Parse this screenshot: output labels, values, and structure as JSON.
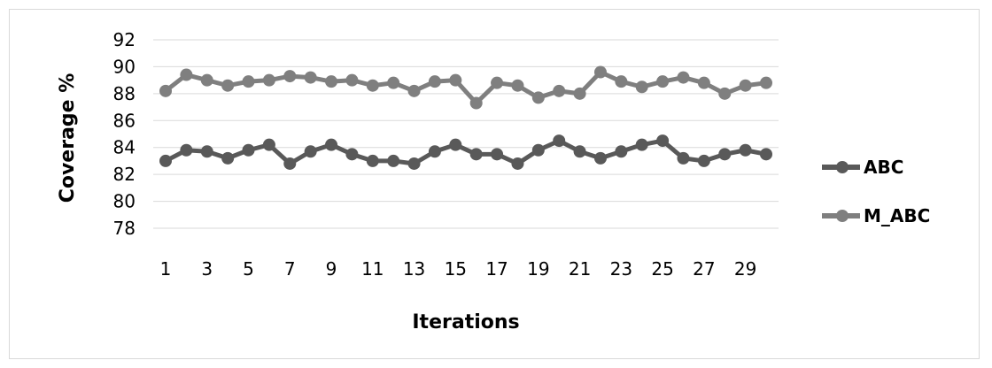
{
  "chart_data": {
    "type": "line",
    "title": "",
    "xlabel": "Iterations",
    "ylabel": "Coverage %",
    "x": [
      1,
      2,
      3,
      4,
      5,
      6,
      7,
      8,
      9,
      10,
      11,
      12,
      13,
      14,
      15,
      16,
      17,
      18,
      19,
      20,
      21,
      22,
      23,
      24,
      25,
      26,
      27,
      28,
      29,
      30
    ],
    "x_tick_labels": [
      "1",
      "3",
      "5",
      "7",
      "9",
      "11",
      "13",
      "15",
      "17",
      "19",
      "21",
      "23",
      "25",
      "27",
      "29"
    ],
    "y_tick_labels": [
      "78",
      "80",
      "82",
      "84",
      "86",
      "88",
      "90",
      "92"
    ],
    "ylim": [
      78,
      92
    ],
    "grid": true,
    "legend_position": "right",
    "series": [
      {
        "name": "ABC",
        "color": "#595959",
        "values": [
          83.0,
          83.8,
          83.7,
          83.2,
          83.8,
          84.2,
          82.8,
          83.7,
          84.2,
          83.5,
          83.0,
          83.0,
          82.8,
          83.7,
          84.2,
          83.5,
          83.5,
          82.8,
          83.8,
          84.5,
          83.7,
          83.2,
          83.7,
          84.2,
          84.5,
          83.2,
          83.0,
          83.5,
          83.8,
          83.5
        ]
      },
      {
        "name": "M_ABC",
        "color": "#7f7f7f",
        "values": [
          88.2,
          89.4,
          89.0,
          88.6,
          88.9,
          89.0,
          89.3,
          89.2,
          88.9,
          89.0,
          88.6,
          88.8,
          88.2,
          88.9,
          89.0,
          87.3,
          88.8,
          88.6,
          87.7,
          88.2,
          88.0,
          89.6,
          88.9,
          88.5,
          88.9,
          89.2,
          88.8,
          88.0,
          88.6,
          88.8
        ]
      }
    ]
  }
}
